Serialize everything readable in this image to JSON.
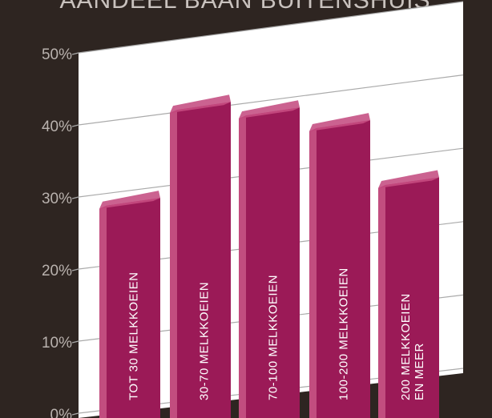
{
  "chart_data": {
    "type": "bar",
    "title": "AANDEEL BAAN BUITENSHUIS",
    "categories": [
      [
        "TOT 30 MELKKOEIEN"
      ],
      [
        "30-70 MELKKOEIEN"
      ],
      [
        "70-100 MELKKOEIEN"
      ],
      [
        "100-200 MELKKOEIEN"
      ],
      [
        "200 MELKKOEIEN",
        "EN MEER"
      ]
    ],
    "values": [
      29,
      41,
      39,
      36,
      27
    ],
    "ylim": [
      0,
      50
    ],
    "yticks": [
      "0%",
      "10%",
      "20%",
      "30%",
      "40%",
      "50%"
    ],
    "xlabel": "",
    "ylabel": "",
    "grid": true,
    "colors": {
      "background": "#2e2521",
      "bar_front": "#9b1a57",
      "bar_side": "#c24d7f",
      "bar_top": "#c2467c",
      "plot_bg": "#ffffff",
      "grid": "#aaaaaa",
      "tick_text": "#b9b2ae",
      "title_text": "#c9c2be",
      "bar_text": "#ffffff"
    }
  }
}
